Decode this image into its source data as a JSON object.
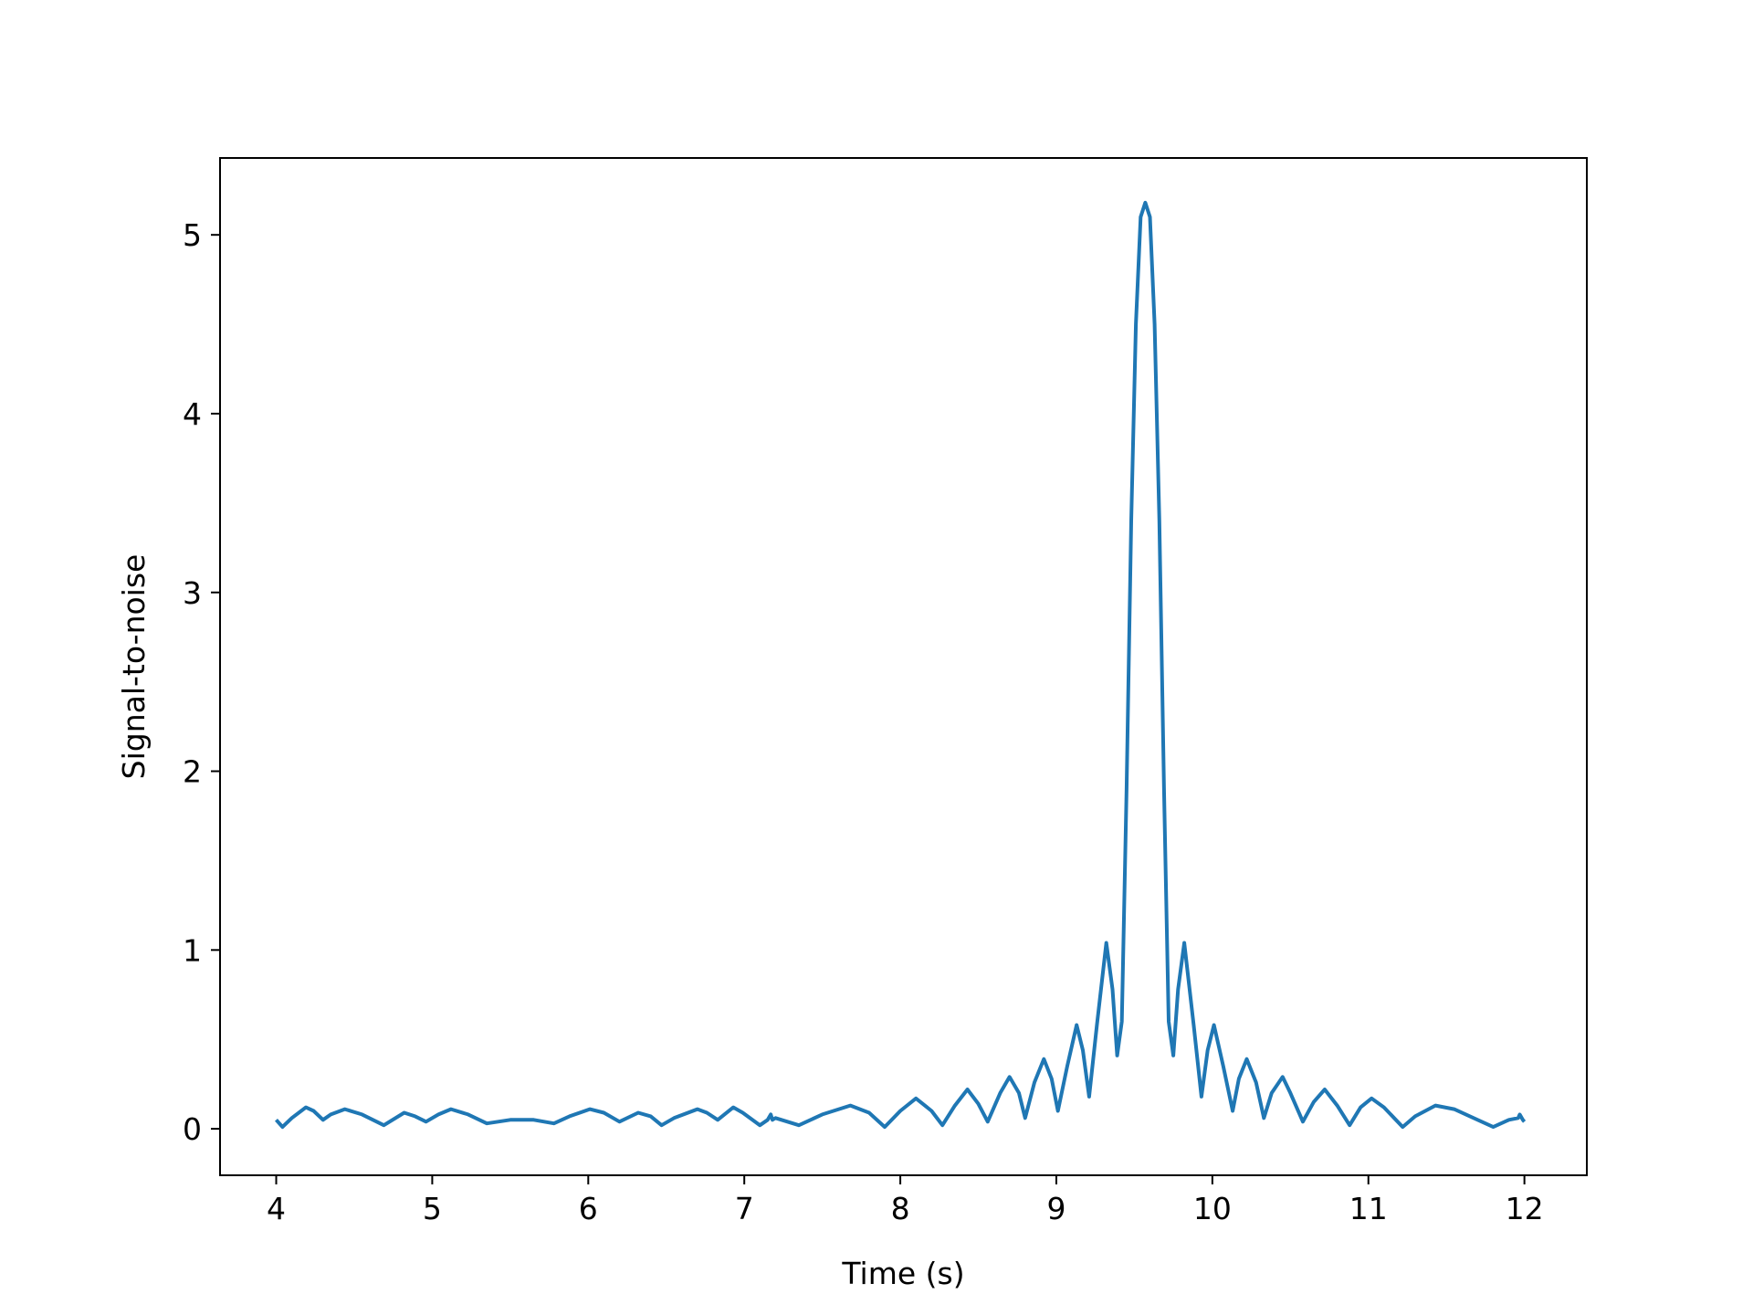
{
  "chart_data": {
    "type": "line",
    "title": "",
    "xlabel": "Time (s)",
    "ylabel": "Signal-to-noise",
    "xlim": [
      3.64,
      12.4
    ],
    "ylim": [
      -0.26,
      5.43
    ],
    "grid": false,
    "legend": "none",
    "x_ticks": [
      4,
      5,
      6,
      7,
      8,
      9,
      10,
      11,
      12
    ],
    "y_ticks": [
      0,
      1,
      2,
      3,
      4,
      5
    ],
    "series": [
      {
        "color": "#1f77b4",
        "points": [
          [
            4.0,
            0.05
          ],
          [
            4.04,
            0.01
          ],
          [
            4.1,
            0.06
          ],
          [
            4.19,
            0.12
          ],
          [
            4.24,
            0.1
          ],
          [
            4.3,
            0.05
          ],
          [
            4.35,
            0.08
          ],
          [
            4.44,
            0.11
          ],
          [
            4.55,
            0.08
          ],
          [
            4.69,
            0.02
          ],
          [
            4.82,
            0.09
          ],
          [
            4.89,
            0.07
          ],
          [
            4.96,
            0.04
          ],
          [
            5.04,
            0.08
          ],
          [
            5.12,
            0.11
          ],
          [
            5.23,
            0.08
          ],
          [
            5.35,
            0.03
          ],
          [
            5.5,
            0.05
          ],
          [
            5.65,
            0.05
          ],
          [
            5.78,
            0.03
          ],
          [
            5.88,
            0.07
          ],
          [
            6.01,
            0.11
          ],
          [
            6.1,
            0.09
          ],
          [
            6.2,
            0.04
          ],
          [
            6.32,
            0.09
          ],
          [
            6.4,
            0.07
          ],
          [
            6.47,
            0.02
          ],
          [
            6.55,
            0.06
          ],
          [
            6.7,
            0.11
          ],
          [
            6.76,
            0.09
          ],
          [
            6.83,
            0.05
          ],
          [
            6.93,
            0.12
          ],
          [
            6.99,
            0.09
          ],
          [
            7.1,
            0.02
          ],
          [
            7.15,
            0.05
          ],
          [
            7.17,
            0.08
          ],
          [
            7.18,
            0.05
          ],
          [
            7.2,
            0.06
          ],
          [
            7.35,
            0.02
          ],
          [
            7.5,
            0.08
          ],
          [
            7.68,
            0.13
          ],
          [
            7.8,
            0.09
          ],
          [
            7.9,
            0.01
          ],
          [
            8.0,
            0.1
          ],
          [
            8.1,
            0.17
          ],
          [
            8.2,
            0.1
          ],
          [
            8.27,
            0.02
          ],
          [
            8.35,
            0.13
          ],
          [
            8.43,
            0.22
          ],
          [
            8.5,
            0.14
          ],
          [
            8.56,
            0.04
          ],
          [
            8.64,
            0.2
          ],
          [
            8.7,
            0.29
          ],
          [
            8.76,
            0.2
          ],
          [
            8.8,
            0.06
          ],
          [
            8.86,
            0.26
          ],
          [
            8.92,
            0.39
          ],
          [
            8.97,
            0.28
          ],
          [
            9.01,
            0.1
          ],
          [
            9.07,
            0.35
          ],
          [
            9.13,
            0.58
          ],
          [
            9.17,
            0.44
          ],
          [
            9.21,
            0.18
          ],
          [
            9.26,
            0.58
          ],
          [
            9.32,
            1.04
          ],
          [
            9.36,
            0.78
          ],
          [
            9.39,
            0.41
          ],
          [
            9.42,
            0.6
          ],
          [
            9.45,
            1.9
          ],
          [
            9.48,
            3.4
          ],
          [
            9.51,
            4.5
          ],
          [
            9.54,
            5.1
          ],
          [
            9.57,
            5.18
          ],
          [
            9.6,
            5.1
          ],
          [
            9.63,
            4.5
          ],
          [
            9.66,
            3.4
          ],
          [
            9.69,
            1.9
          ],
          [
            9.72,
            0.6
          ],
          [
            9.75,
            0.41
          ],
          [
            9.78,
            0.78
          ],
          [
            9.82,
            1.04
          ],
          [
            9.88,
            0.58
          ],
          [
            9.93,
            0.18
          ],
          [
            9.97,
            0.44
          ],
          [
            10.01,
            0.58
          ],
          [
            10.07,
            0.35
          ],
          [
            10.13,
            0.1
          ],
          [
            10.17,
            0.28
          ],
          [
            10.22,
            0.39
          ],
          [
            10.28,
            0.26
          ],
          [
            10.33,
            0.06
          ],
          [
            10.38,
            0.2
          ],
          [
            10.45,
            0.29
          ],
          [
            10.5,
            0.2
          ],
          [
            10.58,
            0.04
          ],
          [
            10.65,
            0.15
          ],
          [
            10.72,
            0.22
          ],
          [
            10.8,
            0.13
          ],
          [
            10.88,
            0.02
          ],
          [
            10.95,
            0.12
          ],
          [
            11.02,
            0.17
          ],
          [
            11.1,
            0.12
          ],
          [
            11.22,
            0.01
          ],
          [
            11.3,
            0.07
          ],
          [
            11.43,
            0.13
          ],
          [
            11.55,
            0.11
          ],
          [
            11.7,
            0.05
          ],
          [
            11.8,
            0.01
          ],
          [
            11.9,
            0.05
          ],
          [
            11.96,
            0.06
          ],
          [
            11.97,
            0.08
          ],
          [
            11.99,
            0.05
          ],
          [
            12.0,
            0.04
          ]
        ]
      }
    ]
  }
}
